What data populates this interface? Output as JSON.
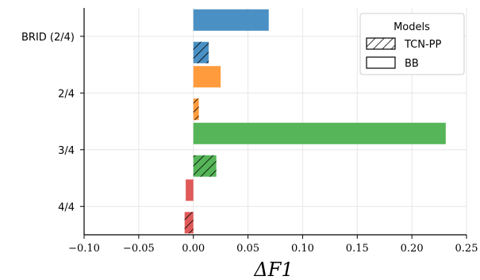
{
  "chart_data": {
    "type": "bar",
    "orientation": "horizontal",
    "categories": [
      "BRID (2/4)",
      "2/4",
      "3/4",
      "4/4"
    ],
    "series": [
      {
        "name": "BB",
        "hatched": false,
        "values": [
          0.069,
          0.025,
          0.231,
          -0.007
        ]
      },
      {
        "name": "TCN-PP",
        "hatched": true,
        "values": [
          0.014,
          0.005,
          0.021,
          -0.008
        ]
      }
    ],
    "colors": [
      "#4a90c4",
      "#ff9b3d",
      "#55b558",
      "#e05a5a"
    ],
    "xlabel": "ΔF1",
    "xlim": [
      -0.1,
      0.25
    ],
    "xticks": [
      "−0.10",
      "−0.05",
      "0.00",
      "0.05",
      "0.10",
      "0.15",
      "0.20",
      "0.25"
    ],
    "xtick_values": [
      -0.1,
      -0.05,
      0.0,
      0.05,
      0.1,
      0.15,
      0.2,
      0.25
    ],
    "grid": true,
    "legend": {
      "title": "Models",
      "position": "top-right",
      "entries": [
        {
          "label": "TCN-PP",
          "hatched": true
        },
        {
          "label": "BB",
          "hatched": false
        }
      ]
    }
  }
}
